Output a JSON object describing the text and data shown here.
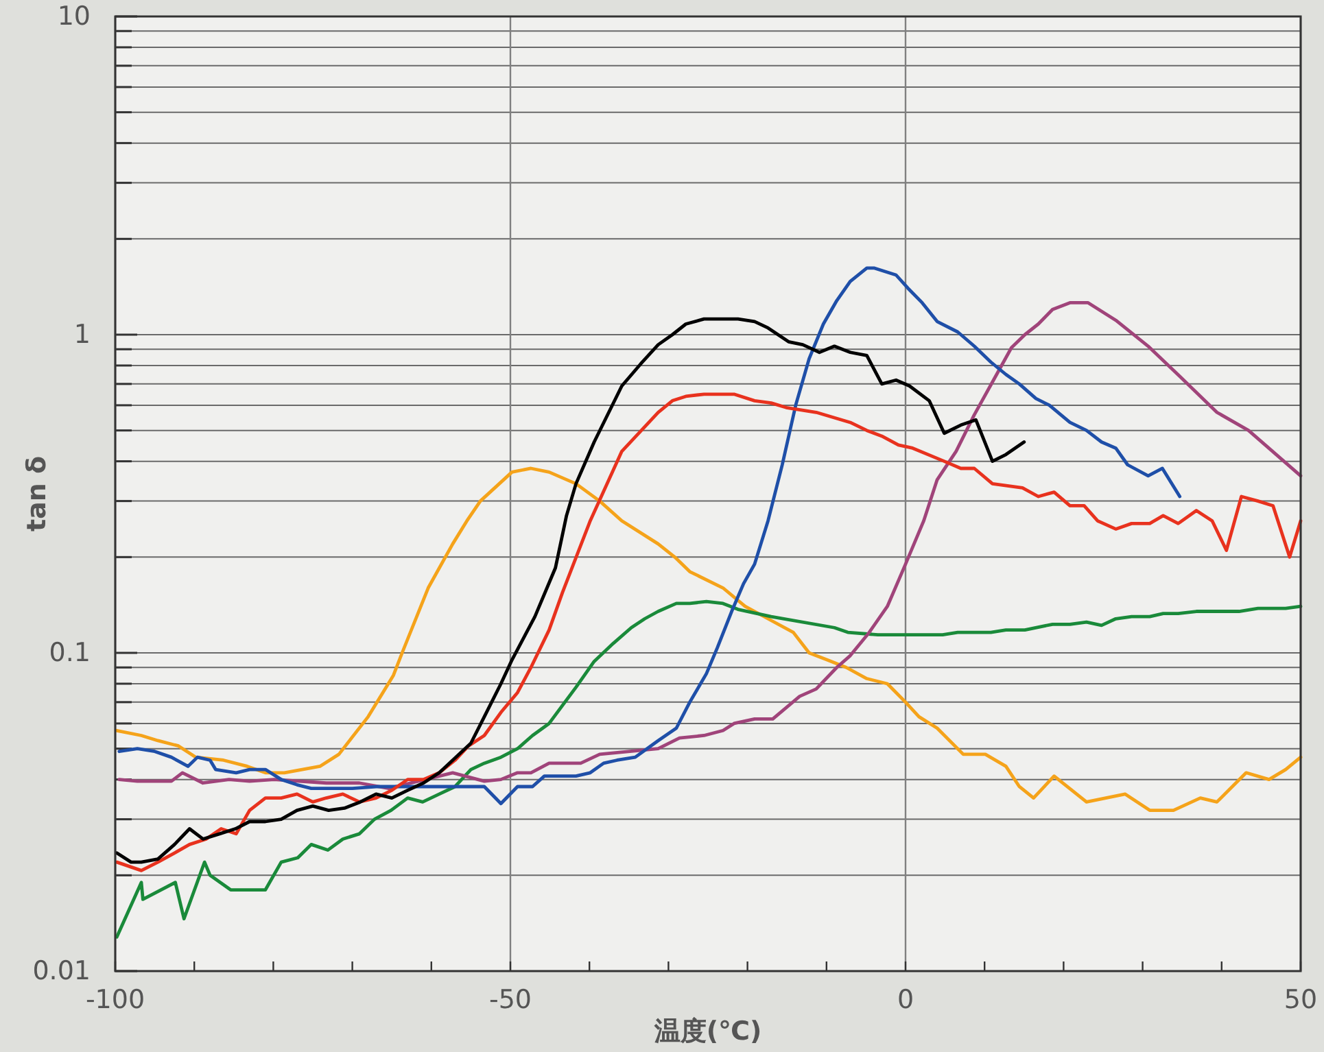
{
  "chart_data": {
    "type": "line",
    "xlabel": "温度(℃)",
    "ylabel": "tan δ",
    "log": "y",
    "grid": true,
    "marker": "none",
    "line_style": "solid",
    "xlim": [
      -100,
      50
    ],
    "xticks": [
      -100,
      {
        "value": -90,
        "label": null
      },
      {
        "value": -80,
        "label": null
      },
      {
        "value": -70,
        "label": null
      },
      {
        "value": -60,
        "label": null
      },
      -50,
      {
        "value": -40,
        "label": null
      },
      {
        "value": -30,
        "label": null
      },
      {
        "value": -20,
        "label": null
      },
      {
        "value": -10,
        "label": null
      },
      0,
      {
        "value": 10,
        "label": null
      },
      {
        "value": 20,
        "label": null
      },
      {
        "value": 30,
        "label": null
      },
      {
        "value": 40,
        "label": null
      },
      50
    ],
    "ylim": [
      0.01,
      10
    ],
    "yticks": [
      0.01,
      {
        "value": 0.02,
        "label": null
      },
      {
        "value": 0.03,
        "label": null
      },
      {
        "value": 0.04,
        "label": null
      },
      {
        "value": 0.05,
        "label": null
      },
      {
        "value": 0.06,
        "label": null
      },
      {
        "value": 0.07,
        "label": null
      },
      {
        "value": 0.08,
        "label": null
      },
      {
        "value": 0.09,
        "label": null
      },
      0.1,
      {
        "value": 0.2,
        "label": null
      },
      {
        "value": 0.3,
        "label": null
      },
      {
        "value": 0.4,
        "label": null
      },
      {
        "value": 0.5,
        "label": null
      },
      {
        "value": 0.6,
        "label": null
      },
      {
        "value": 0.7,
        "label": null
      },
      {
        "value": 0.8,
        "label": null
      },
      {
        "value": 0.9,
        "label": null
      },
      1,
      {
        "value": 2,
        "label": null
      },
      {
        "value": 3,
        "label": null
      },
      {
        "value": 4,
        "label": null
      },
      {
        "value": 5,
        "label": null
      },
      {
        "value": 6,
        "label": null
      },
      {
        "value": 7,
        "label": null
      },
      {
        "value": 8,
        "label": null
      },
      {
        "value": 9,
        "label": null
      },
      10
    ],
    "series": [
      {
        "color": "#f5a31a",
        "x": [
          -99.8,
          -96.7,
          -94.6,
          -92,
          -89.8,
          -86.3,
          -83.3,
          -81,
          -78.6,
          -74.1,
          -71.7,
          -68,
          -64.8,
          -63.7,
          -60.4,
          -57.3,
          -55.5,
          -53.8,
          -49.8,
          -47.4,
          -45.1,
          -41.7,
          -38.7,
          -35.9,
          -31.3,
          -29.2,
          -27.3,
          -23.1,
          -20.3,
          -17.4,
          -14.2,
          -12.2,
          -9.9,
          -7.5,
          -4.9,
          -2.3,
          0,
          1.7,
          4,
          7.3,
          10.1,
          12.7,
          14.4,
          16.2,
          18.8,
          22.9,
          27.8,
          30.9,
          33.9,
          37.3,
          39.4,
          43.1,
          46,
          48.1,
          50
        ],
        "values": [
          0.057,
          0.055,
          0.053,
          0.051,
          0.047,
          0.046,
          0.044,
          0.042,
          0.042,
          0.044,
          0.048,
          0.063,
          0.085,
          0.1,
          0.16,
          0.22,
          0.26,
          0.3,
          0.37,
          0.38,
          0.37,
          0.34,
          0.3,
          0.26,
          0.22,
          0.2,
          0.18,
          0.16,
          0.14,
          0.128,
          0.116,
          0.1,
          0.095,
          0.09,
          0.083,
          0.08,
          0.07,
          0.063,
          0.058,
          0.048,
          0.048,
          0.044,
          0.038,
          0.035,
          0.041,
          0.034,
          0.036,
          0.032,
          0.032,
          0.035,
          0.034,
          0.042,
          0.04,
          0.043,
          0.047
        ]
      },
      {
        "color": "#1a8a3a",
        "x": [
          -99.8,
          -96.7,
          -96.5,
          -92.4,
          -91.3,
          -88.7,
          -88,
          -85.4,
          -81,
          -79,
          -76.9,
          -75.2,
          -73.1,
          -71.2,
          -69.1,
          -67.2,
          -65.1,
          -63,
          -61.1,
          -59,
          -57,
          -55,
          -53.3,
          -51.2,
          -49.1,
          -47.2,
          -45.1,
          -41.7,
          -39.4,
          -37,
          -34.7,
          -33,
          -31.3,
          -29,
          -27.3,
          -25.2,
          -23.1,
          -21.2,
          -17,
          -9,
          -7.3,
          -3.5,
          4.7,
          6.6,
          10.8,
          12.7,
          15.1,
          18.6,
          20.8,
          22.9,
          24.8,
          26.6,
          28.6,
          30.9,
          32.6,
          34.5,
          36.8,
          42.2,
          44.6,
          48.1,
          50
        ],
        "values": [
          0.0128,
          0.019,
          0.0168,
          0.019,
          0.0146,
          0.022,
          0.02,
          0.018,
          0.018,
          0.022,
          0.0227,
          0.025,
          0.024,
          0.026,
          0.027,
          0.03,
          0.032,
          0.035,
          0.034,
          0.036,
          0.038,
          0.043,
          0.045,
          0.047,
          0.05,
          0.055,
          0.06,
          0.078,
          0.094,
          0.107,
          0.12,
          0.128,
          0.135,
          0.143,
          0.143,
          0.145,
          0.143,
          0.137,
          0.13,
          0.12,
          0.116,
          0.114,
          0.114,
          0.116,
          0.116,
          0.118,
          0.118,
          0.123,
          0.123,
          0.125,
          0.122,
          0.128,
          0.13,
          0.13,
          0.133,
          0.133,
          0.135,
          0.135,
          0.138,
          0.138,
          0.14
        ]
      },
      {
        "color": "#a0447a",
        "x": [
          -99.5,
          -97.2,
          -92.9,
          -91.5,
          -88.9,
          -85.6,
          -83,
          -79.9,
          -73.3,
          -69.1,
          -65.4,
          -57.3,
          -53.3,
          -51.2,
          -49.1,
          -47.4,
          -45.1,
          -41.1,
          -38.7,
          -31.3,
          -28.6,
          -25.5,
          -23.1,
          -21.7,
          -19.1,
          -16.8,
          -13.4,
          -11.3,
          -8.7,
          -7,
          -4.7,
          -2.3,
          0,
          2.3,
          4,
          6.4,
          8.7,
          11,
          13.4,
          15.1,
          16.8,
          18.6,
          20.8,
          23.1,
          26.6,
          30.7,
          34.7,
          39.4,
          43.4,
          50
        ],
        "values": [
          0.04,
          0.0395,
          0.0395,
          0.042,
          0.039,
          0.04,
          0.0395,
          0.04,
          0.039,
          0.039,
          0.0375,
          0.042,
          0.0395,
          0.04,
          0.042,
          0.042,
          0.045,
          0.045,
          0.048,
          0.05,
          0.054,
          0.055,
          0.057,
          0.06,
          0.062,
          0.062,
          0.073,
          0.077,
          0.09,
          0.098,
          0.115,
          0.14,
          0.19,
          0.26,
          0.35,
          0.43,
          0.56,
          0.71,
          0.91,
          1.0,
          1.08,
          1.2,
          1.26,
          1.26,
          1.11,
          0.92,
          0.74,
          0.57,
          0.5,
          0.36
        ]
      },
      {
        "color": "#1f4fa8",
        "x": [
          -99.5,
          -97.2,
          -95,
          -92.9,
          -90.8,
          -89.6,
          -88,
          -87.3,
          -84.7,
          -83,
          -81,
          -79,
          -77,
          -75.2,
          -70,
          -66.7,
          -53.3,
          -51.2,
          -49.1,
          -47.2,
          -45.7,
          -41.7,
          -39.9,
          -38.2,
          -36.5,
          -34.2,
          -31.3,
          -29,
          -27.3,
          -25.2,
          -23.8,
          -22,
          -20.5,
          -19.1,
          -17.4,
          -15.6,
          -13.9,
          -12.2,
          -10.4,
          -8.7,
          -7,
          -4.9,
          -4,
          -1.2,
          0.3,
          2.1,
          4,
          6.6,
          8.7,
          10.8,
          12.7,
          14.4,
          16.5,
          18.2,
          20.8,
          22.9,
          24.8,
          26.6,
          28.1,
          30.7,
          32.5,
          34.7
        ],
        "values": [
          0.049,
          0.05,
          0.049,
          0.047,
          0.044,
          0.047,
          0.046,
          0.043,
          0.042,
          0.043,
          0.043,
          0.04,
          0.0385,
          0.0375,
          0.0375,
          0.038,
          0.038,
          0.0336,
          0.038,
          0.038,
          0.041,
          0.041,
          0.042,
          0.045,
          0.046,
          0.047,
          0.053,
          0.058,
          0.07,
          0.086,
          0.104,
          0.135,
          0.165,
          0.19,
          0.26,
          0.39,
          0.6,
          0.84,
          1.08,
          1.28,
          1.47,
          1.62,
          1.62,
          1.54,
          1.4,
          1.26,
          1.1,
          1.02,
          0.92,
          0.82,
          0.75,
          0.7,
          0.63,
          0.6,
          0.53,
          0.5,
          0.46,
          0.44,
          0.39,
          0.36,
          0.38,
          0.31
        ]
      },
      {
        "color": "#e8321e",
        "x": [
          -99.8,
          -96.7,
          -94.6,
          -92.5,
          -90.6,
          -88.5,
          -86.6,
          -84.7,
          -83,
          -81,
          -79,
          -77,
          -75,
          -73.3,
          -71.2,
          -69.1,
          -67,
          -65,
          -63,
          -61,
          -59,
          -57,
          -55.3,
          -53.3,
          -51.2,
          -49.1,
          -47.4,
          -45.1,
          -43.4,
          -39.9,
          -35.9,
          -31.3,
          -29.5,
          -27.8,
          -25.5,
          -21.7,
          -19.1,
          -17,
          -15.1,
          -11.3,
          -7,
          -4.9,
          -3,
          -0.9,
          0.9,
          4.9,
          7,
          8.7,
          11,
          14.8,
          16.8,
          18.8,
          20.8,
          22.6,
          24.3,
          26.6,
          28.6,
          30.9,
          32.6,
          34.5,
          36.8,
          38.8,
          40.6,
          42.5,
          44.6,
          46.5,
          48.6,
          50
        ],
        "values": [
          0.022,
          0.0207,
          0.022,
          0.0235,
          0.025,
          0.026,
          0.028,
          0.027,
          0.032,
          0.035,
          0.035,
          0.036,
          0.034,
          0.035,
          0.036,
          0.034,
          0.035,
          0.037,
          0.04,
          0.04,
          0.042,
          0.046,
          0.051,
          0.055,
          0.065,
          0.075,
          0.09,
          0.118,
          0.155,
          0.26,
          0.43,
          0.57,
          0.62,
          0.64,
          0.65,
          0.65,
          0.62,
          0.61,
          0.59,
          0.57,
          0.53,
          0.5,
          0.48,
          0.45,
          0.44,
          0.4,
          0.38,
          0.38,
          0.34,
          0.33,
          0.31,
          0.32,
          0.29,
          0.29,
          0.26,
          0.245,
          0.255,
          0.255,
          0.27,
          0.255,
          0.28,
          0.26,
          0.21,
          0.31,
          0.3,
          0.29,
          0.2,
          0.26
        ]
      },
      {
        "color": "#000000",
        "x": [
          -99.8,
          -98,
          -96.7,
          -94.6,
          -92.5,
          -90.6,
          -88.9,
          -86.8,
          -84.8,
          -83,
          -81,
          -79,
          -77,
          -75,
          -73,
          -71,
          -69,
          -67,
          -65,
          -63,
          -61,
          -59,
          -57.3,
          -55,
          -53.3,
          -51.2,
          -49.8,
          -46.9,
          -44.3,
          -42.9,
          -41.7,
          -39.4,
          -35.9,
          -33.5,
          -31.3,
          -29.5,
          -27.8,
          -25.5,
          -21.2,
          -19.1,
          -17.4,
          -14.8,
          -13,
          -10.9,
          -9,
          -7,
          -4.9,
          -3,
          -1.2,
          0.5,
          3,
          4.9,
          7,
          8.9,
          11,
          12.7,
          15
        ],
        "values": [
          0.0235,
          0.022,
          0.022,
          0.0225,
          0.025,
          0.028,
          0.026,
          0.027,
          0.028,
          0.0295,
          0.0295,
          0.03,
          0.032,
          0.033,
          0.032,
          0.0325,
          0.034,
          0.036,
          0.035,
          0.037,
          0.039,
          0.042,
          0.046,
          0.052,
          0.063,
          0.08,
          0.095,
          0.13,
          0.185,
          0.27,
          0.34,
          0.46,
          0.69,
          0.81,
          0.93,
          1.0,
          1.08,
          1.12,
          1.12,
          1.1,
          1.05,
          0.95,
          0.93,
          0.88,
          0.92,
          0.88,
          0.86,
          0.7,
          0.72,
          0.69,
          0.62,
          0.49,
          0.52,
          0.54,
          0.4,
          0.42,
          0.46
        ]
      }
    ]
  }
}
